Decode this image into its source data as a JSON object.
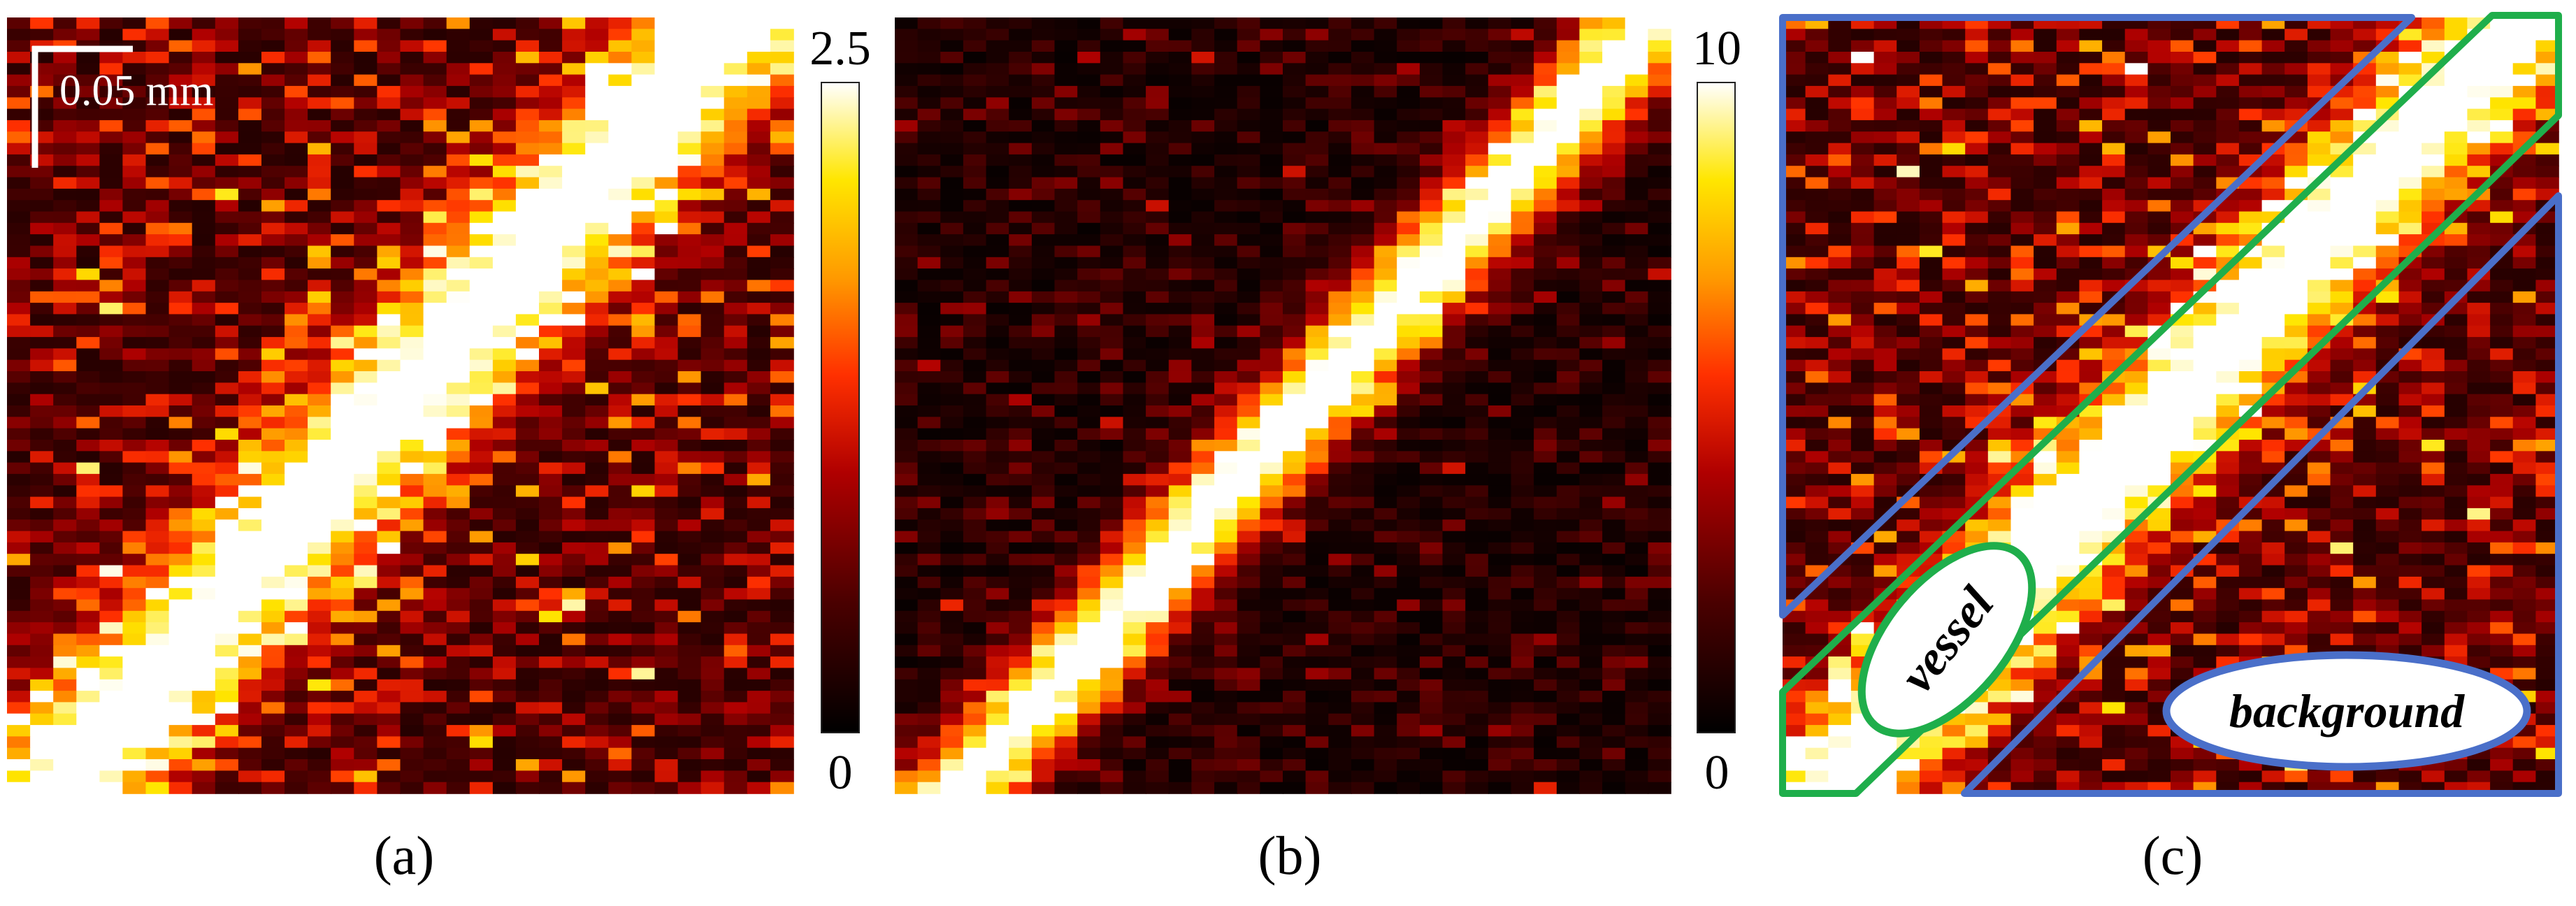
{
  "figure": {
    "panels": [
      {
        "id": "a",
        "caption": "(a)",
        "colorbar": {
          "max_label": "2.5",
          "min_label": "0"
        }
      },
      {
        "id": "b",
        "caption": "(b)",
        "colorbar": {
          "max_label": "10",
          "min_label": "0"
        }
      },
      {
        "id": "c",
        "caption": "(c)"
      }
    ],
    "scale_bar": {
      "label": "0.05 mm"
    },
    "region_labels": {
      "vessel": "vessel",
      "background": "background"
    },
    "colors": {
      "vessel_outline": "#1fae4b",
      "background_outline": "#4a6fc9",
      "scale_bar": "#ffffff",
      "colormap": [
        "#000000",
        "#4a0000",
        "#9a0000",
        "#e02000",
        "#ff7a00",
        "#ffd000",
        "#ffff70",
        "#ffffff"
      ]
    }
  }
}
